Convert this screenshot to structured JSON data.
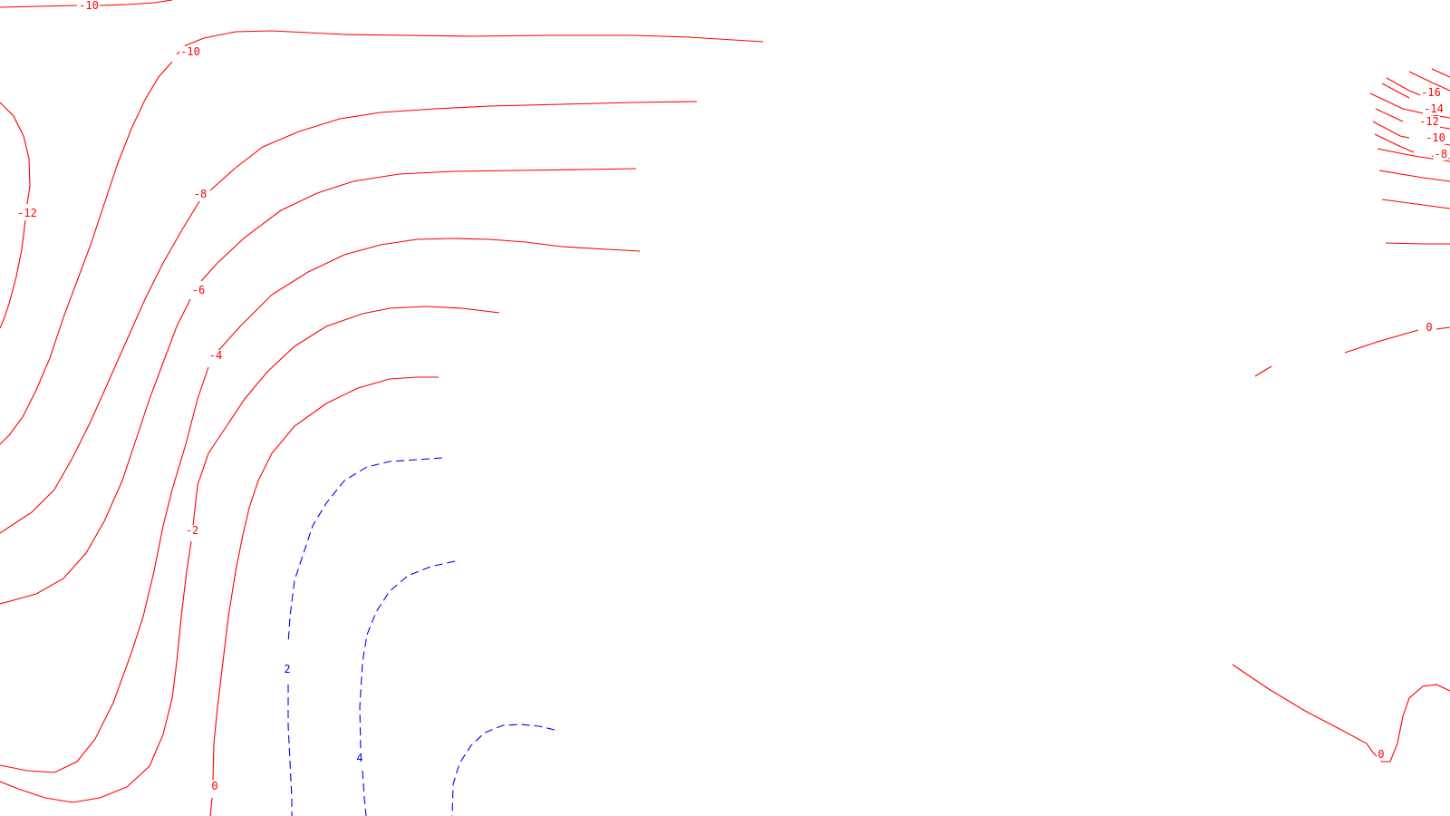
{
  "chart_data": {
    "type": "contour",
    "title": "",
    "xlabel": "",
    "ylabel": "",
    "negative_style": "solid",
    "positive_style": "dashed",
    "colors": {
      "negative": "#ff0000",
      "zero": "#ff0000",
      "positive": "#0000ff"
    },
    "contour_labels": [
      "-10",
      "-10",
      "-12",
      "-8",
      "-6",
      "-4",
      "-2",
      "0",
      "2",
      "4",
      "-16",
      "-14",
      "-12",
      "-10",
      "-8",
      "0",
      "0"
    ],
    "levels_shown": [
      -16,
      -14,
      -12,
      -10,
      -8,
      -6,
      -4,
      -2,
      0,
      2,
      4
    ]
  }
}
